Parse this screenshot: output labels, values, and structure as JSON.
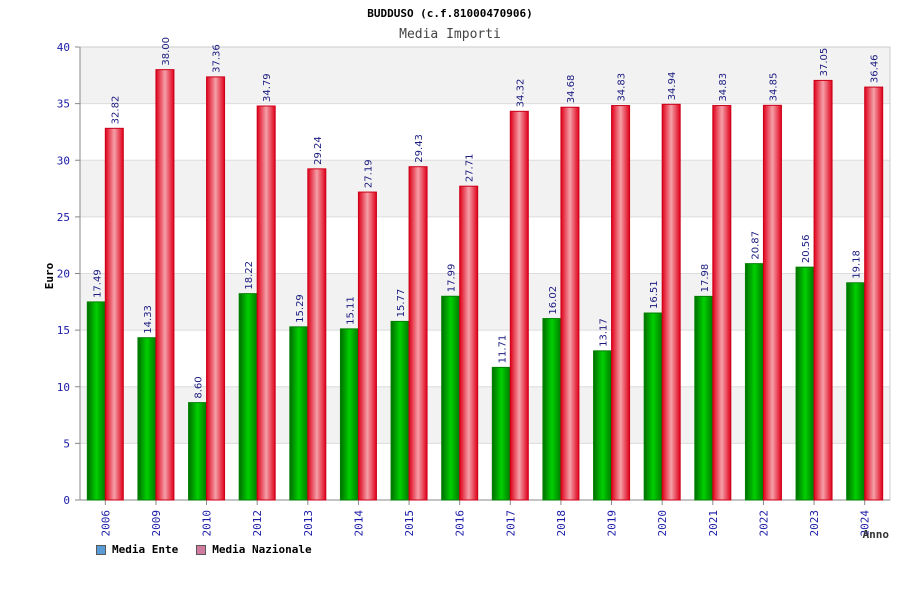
{
  "chart_data": {
    "type": "bar",
    "title": "BUDDUSO (c.f.81000470906)",
    "subtitle": "Media Importi",
    "ylabel": "Euro",
    "xlabel": "Anno",
    "ylim": [
      0,
      40
    ],
    "yticks": [
      0,
      5,
      10,
      15,
      20,
      25,
      30,
      35,
      40
    ],
    "grid": true,
    "legend_position": "bottom-left",
    "categories": [
      "2006",
      "2009",
      "2010",
      "2012",
      "2013",
      "2014",
      "2015",
      "2016",
      "2017",
      "2018",
      "2019",
      "2020",
      "2021",
      "2022",
      "2023",
      "2024"
    ],
    "series": [
      {
        "name": "Media Ente",
        "color": "#00a000",
        "legend_color": "#5b9bd5",
        "values": [
          17.49,
          14.33,
          8.6,
          18.22,
          15.29,
          15.11,
          15.77,
          17.99,
          11.71,
          16.02,
          13.17,
          16.51,
          17.98,
          20.87,
          20.56,
          19.18
        ],
        "labels": [
          "17.49",
          "14.33",
          "8.60",
          "18.22",
          "15.29",
          "15.11",
          "15.77",
          "17.99",
          "11.71",
          "16.02",
          "13.17",
          "16.51",
          "17.98",
          "20.87",
          "20.56",
          "19.18"
        ]
      },
      {
        "name": "Media Nazionale",
        "color": "#e8001a",
        "legend_color": "#d07aa0",
        "values": [
          32.82,
          38.0,
          37.36,
          34.79,
          29.24,
          27.19,
          29.43,
          27.71,
          34.32,
          34.68,
          34.83,
          34.94,
          34.83,
          34.85,
          37.05,
          36.46
        ],
        "labels": [
          "32.82",
          "38.00",
          "37.36",
          "34.79",
          "29.24",
          "27.19",
          "29.43",
          "27.71",
          "34.32",
          "34.68",
          "34.83",
          "34.94",
          "34.83",
          "34.85",
          "37.05",
          "36.46"
        ]
      }
    ]
  }
}
